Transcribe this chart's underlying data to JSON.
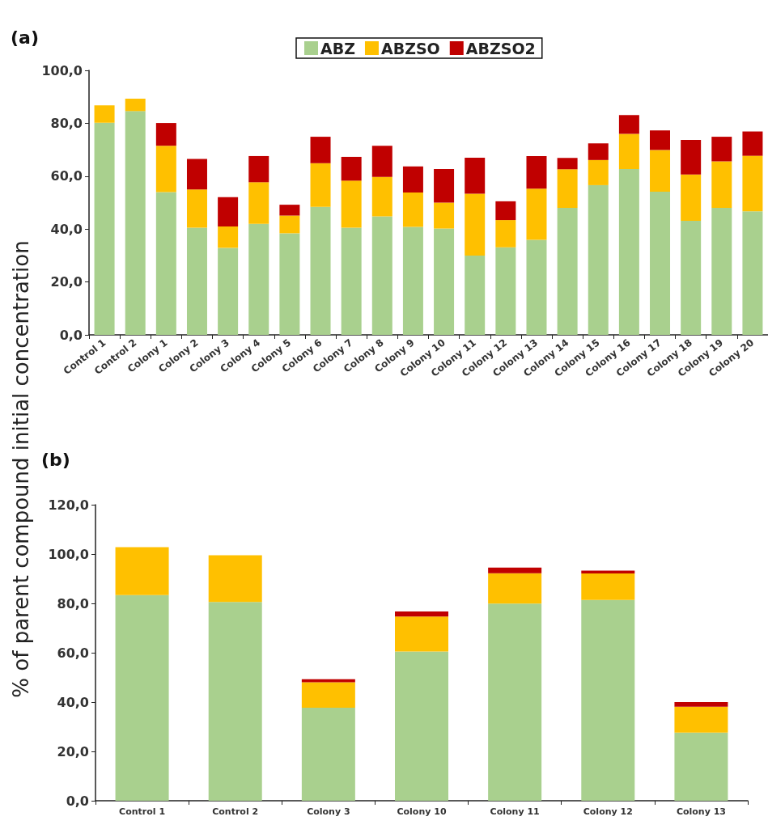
{
  "chart_data": [
    {
      "type": "bar",
      "title": "(a)",
      "ylabel": "% of parent compound initial concentration",
      "stacked": true,
      "legend": "top",
      "categories": [
        "Control 1",
        "Control 2",
        "Colony 1",
        "Colony 2",
        "Colony 3",
        "Colony 4",
        "Colony 5",
        "Colony 6",
        "Colony 7",
        "Colony 8",
        "Colony 9",
        "Colony 10",
        "Colony 11",
        "Colony 12",
        "Colony 13",
        "Colony 14",
        "Colony 15",
        "Colony 16",
        "Colony 17",
        "Colony 18",
        "Colony 19",
        "Colony 20"
      ],
      "series": [
        {
          "name": "ABZ",
          "color": "#a9d08e",
          "values": [
            80.2,
            84.6,
            54.0,
            40.5,
            32.9,
            42.0,
            38.4,
            48.4,
            40.5,
            44.8,
            40.8,
            40.2,
            30.0,
            33.1,
            35.9,
            48.0,
            56.6,
            62.7,
            54.1,
            43.1,
            48.0,
            46.7
          ]
        },
        {
          "name": "ABZSO",
          "color": "#ffc000",
          "values": [
            6.6,
            4.7,
            17.5,
            14.5,
            8.1,
            15.7,
            6.7,
            16.5,
            17.8,
            14.9,
            13.0,
            9.8,
            23.4,
            10.3,
            19.4,
            14.6,
            9.5,
            13.3,
            15.8,
            17.5,
            17.6,
            21.0
          ]
        },
        {
          "name": "ABZSO2",
          "color": "#c00000",
          "values": [
            0,
            0,
            8.6,
            11.5,
            11.1,
            9.9,
            4.1,
            10.0,
            9.0,
            11.8,
            9.9,
            12.7,
            13.6,
            7.1,
            12.3,
            4.3,
            6.3,
            7.1,
            7.4,
            13.1,
            9.3,
            9.2
          ]
        }
      ],
      "ylim": [
        0,
        100
      ],
      "yticks": [
        {
          "value": 0,
          "label": "0,0"
        },
        {
          "value": 20,
          "label": "20,0"
        },
        {
          "value": 40,
          "label": "40,0"
        },
        {
          "value": 60,
          "label": "60,0"
        },
        {
          "value": 80,
          "label": "80,0"
        },
        {
          "value": 100,
          "label": "100,0"
        }
      ]
    },
    {
      "type": "bar",
      "title": "(b)",
      "stacked": true,
      "categories": [
        "Control 1",
        "Control 2",
        "Colony 3",
        "Colony 10",
        "Colony 11",
        "Colony 12",
        "Colony 13"
      ],
      "series": [
        {
          "color": "#a9d08e",
          "values": [
            83.4,
            80.6,
            37.7,
            60.5,
            79.9,
            81.4,
            27.6
          ]
        },
        {
          "color": "#ffc000",
          "values": [
            19.4,
            18.9,
            10.3,
            14.2,
            12.3,
            10.7,
            10.5
          ]
        },
        {
          "color": "#c00000",
          "values": [
            0,
            0,
            1.3,
            2.0,
            2.3,
            1.2,
            1.9
          ]
        }
      ],
      "ylim": [
        0,
        120
      ],
      "yticks": [
        {
          "value": 0,
          "label": "0,0"
        },
        {
          "value": 20,
          "label": "20,0"
        },
        {
          "value": 40,
          "label": "40,0"
        },
        {
          "value": 60,
          "label": "60,0"
        },
        {
          "value": 80,
          "label": "80,0"
        },
        {
          "value": 100,
          "label": "100,0"
        },
        {
          "value": 120,
          "label": "120,0"
        }
      ]
    }
  ]
}
